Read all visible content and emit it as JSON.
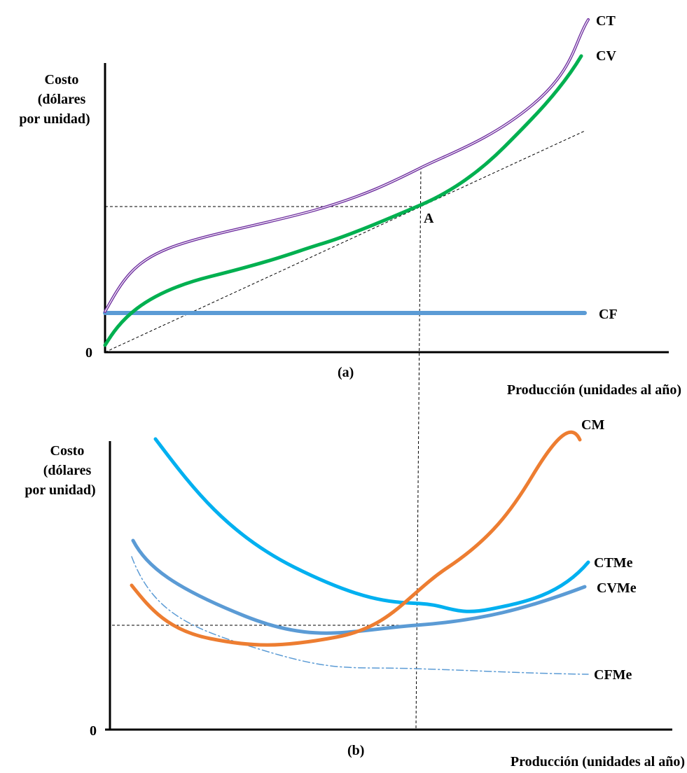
{
  "panel_a": {
    "axis_label": [
      "Costo",
      "(dólares",
      "por unidad)"
    ],
    "origin": "0",
    "curves": {
      "ct": "CT",
      "cv": "CV",
      "cf": "CF"
    },
    "point": "A",
    "caption": "(a)",
    "x_label": "Producción (unidades al año)"
  },
  "panel_b": {
    "axis_label": [
      "Costo",
      "(dólares",
      "por unidad)"
    ],
    "origin": "0",
    "curves": {
      "cm": "CM",
      "ctme": "CTMe",
      "cvme": "CVMe",
      "cfme": "CFMe"
    },
    "caption": "(b)",
    "x_label": "Producción (unidades al año)"
  }
}
